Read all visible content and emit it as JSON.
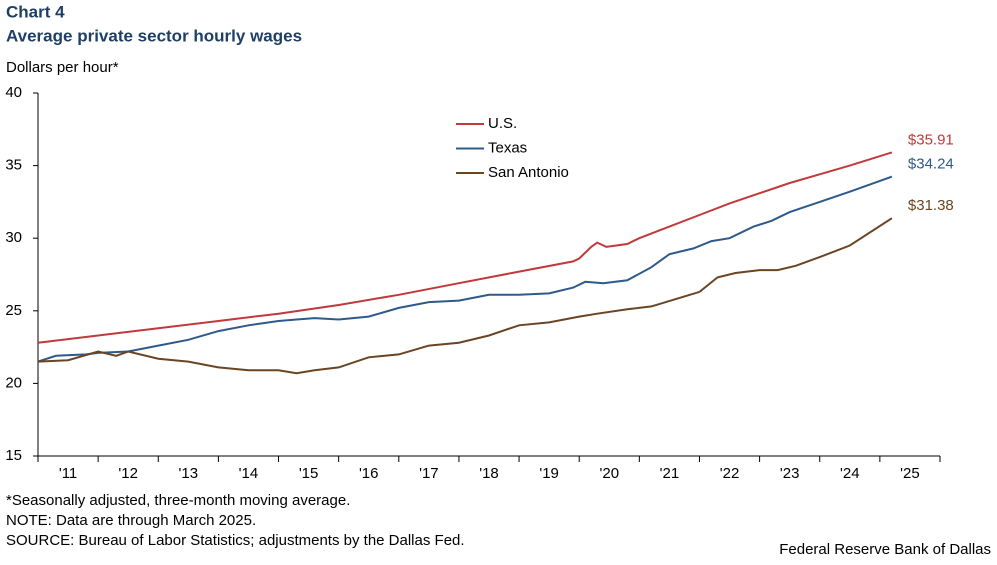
{
  "chart_data": {
    "type": "line",
    "title": "Chart 4",
    "subtitle": "Average private sector hourly wages",
    "y_label": "Dollars per hour*",
    "notes": [
      "*Seasonally adjusted, three-month moving average.",
      "NOTE: Data are through March 2025.",
      "SOURCE: Bureau of Labor Statistics; adjustments by the Dallas Fed."
    ],
    "credit": "Federal Reserve Bank of Dallas",
    "xlim": [
      2011,
      2026
    ],
    "xticks": [
      {
        "value": 2011,
        "label": "'11"
      },
      {
        "value": 2012,
        "label": "'12"
      },
      {
        "value": 2013,
        "label": "'13"
      },
      {
        "value": 2014,
        "label": "'14"
      },
      {
        "value": 2015,
        "label": "'15"
      },
      {
        "value": 2016,
        "label": "'16"
      },
      {
        "value": 2017,
        "label": "'17"
      },
      {
        "value": 2018,
        "label": "'18"
      },
      {
        "value": 2019,
        "label": "'19"
      },
      {
        "value": 2020,
        "label": "'20"
      },
      {
        "value": 2021,
        "label": "'21"
      },
      {
        "value": 2022,
        "label": "'22"
      },
      {
        "value": 2023,
        "label": "'23"
      },
      {
        "value": 2024,
        "label": "'24"
      },
      {
        "value": 2025,
        "label": "'25"
      }
    ],
    "ylim": [
      15,
      40
    ],
    "yticks": [
      15,
      20,
      25,
      30,
      35,
      40
    ],
    "legend": "top center",
    "series": [
      {
        "name": "U.S.",
        "color": "#c0393b",
        "last_label": "$35.91",
        "x": [
          2011,
          2012,
          2013,
          2014,
          2015,
          2016,
          2017,
          2018,
          2019,
          2019.9,
          2020.0,
          2020.2,
          2020.3,
          2020.45,
          2020.8,
          2021.0,
          2021.5,
          2022,
          2022.5,
          2023,
          2023.5,
          2024,
          2024.5,
          2025.2
        ],
        "values": [
          22.8,
          23.3,
          23.8,
          24.3,
          24.8,
          25.4,
          26.1,
          26.9,
          27.7,
          28.4,
          28.6,
          29.4,
          29.7,
          29.4,
          29.6,
          30.0,
          30.8,
          31.6,
          32.4,
          33.1,
          33.8,
          34.4,
          35.0,
          35.91
        ]
      },
      {
        "name": "Texas",
        "color": "#2e5a8a",
        "last_label": "$34.24",
        "x": [
          2011,
          2011.3,
          2011.8,
          2012,
          2012.5,
          2013,
          2013.5,
          2014,
          2014.5,
          2015,
          2015.3,
          2015.6,
          2016,
          2016.5,
          2017,
          2017.5,
          2018,
          2018.5,
          2019,
          2019.5,
          2019.9,
          2020.1,
          2020.4,
          2020.8,
          2021.2,
          2021.5,
          2021.9,
          2022.2,
          2022.5,
          2022.9,
          2023.2,
          2023.5,
          2024,
          2024.5,
          2025.2
        ],
        "values": [
          21.5,
          21.9,
          22.0,
          22.1,
          22.2,
          22.6,
          23.0,
          23.6,
          24.0,
          24.3,
          24.4,
          24.5,
          24.4,
          24.6,
          25.2,
          25.6,
          25.7,
          26.1,
          26.1,
          26.2,
          26.6,
          27.0,
          26.9,
          27.1,
          28.0,
          28.9,
          29.3,
          29.8,
          30.0,
          30.8,
          31.2,
          31.8,
          32.5,
          33.2,
          34.24
        ]
      },
      {
        "name": "San Antonio",
        "color": "#6b4423",
        "last_label": "$31.38",
        "x": [
          2011,
          2011.5,
          2012,
          2012.3,
          2012.5,
          2013,
          2013.5,
          2014,
          2014.5,
          2015,
          2015.3,
          2015.6,
          2016,
          2016.5,
          2017,
          2017.5,
          2018,
          2018.5,
          2019,
          2019.5,
          2020,
          2020.3,
          2020.8,
          2021.2,
          2021.6,
          2022,
          2022.3,
          2022.6,
          2023,
          2023.3,
          2023.6,
          2024,
          2024.5,
          2025.2
        ],
        "values": [
          21.5,
          21.6,
          22.2,
          21.9,
          22.2,
          21.7,
          21.5,
          21.1,
          20.9,
          20.9,
          20.7,
          20.9,
          21.1,
          21.8,
          22.0,
          22.6,
          22.8,
          23.3,
          24.0,
          24.2,
          24.6,
          24.8,
          25.1,
          25.3,
          25.8,
          26.3,
          27.3,
          27.6,
          27.8,
          27.8,
          28.1,
          28.7,
          29.5,
          31.38
        ]
      }
    ]
  }
}
